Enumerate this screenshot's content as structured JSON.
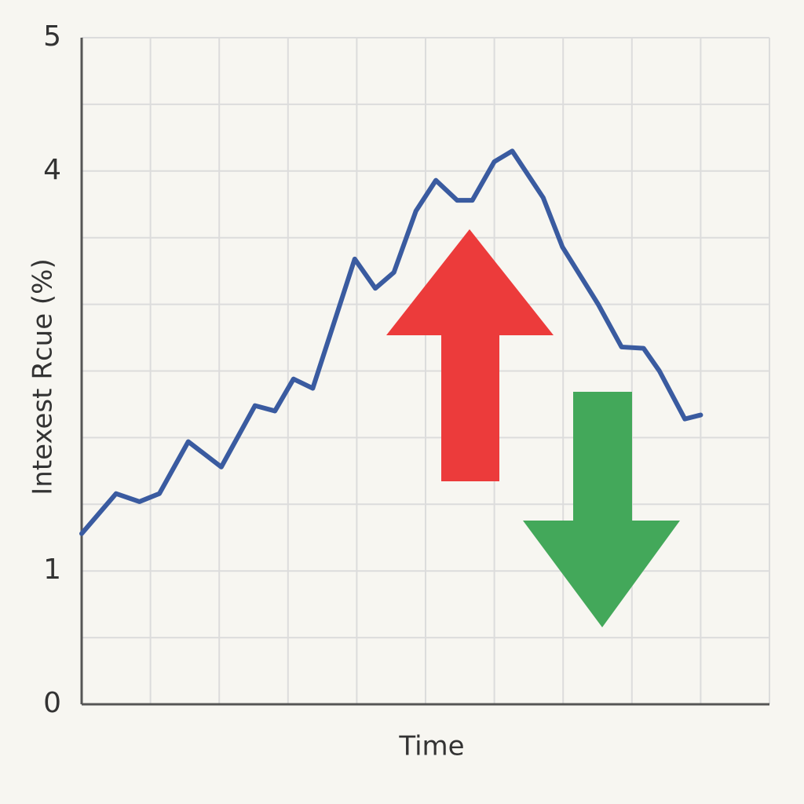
{
  "chart_data": {
    "type": "line",
    "xlabel": "Time",
    "ylabel": "Intexest Rcue (%)",
    "x": [
      0,
      0.5,
      0.84,
      1.13,
      1.55,
      2.03,
      2.52,
      2.81,
      3.08,
      3.36,
      3.97,
      4.27,
      4.54,
      4.86,
      5.15,
      5.46,
      5.68,
      6.0,
      6.26,
      6.71,
      6.99,
      7.51,
      7.85,
      8.17,
      8.4,
      8.77,
      9.0
    ],
    "series": [
      {
        "color": "#3a5ba0",
        "values": [
          1.28,
          1.58,
          1.52,
          1.58,
          1.97,
          1.78,
          2.24,
          2.2,
          2.44,
          2.37,
          3.34,
          3.12,
          3.24,
          3.7,
          3.93,
          3.78,
          3.78,
          4.07,
          4.15,
          3.8,
          3.43,
          3.0,
          2.68,
          2.67,
          2.5,
          2.14,
          2.17
        ]
      }
    ],
    "xlim": [
      0,
      10
    ],
    "ylim": [
      0,
      5
    ],
    "yticks": [
      0,
      1,
      4,
      5
    ],
    "xgrid": [
      0,
      1,
      2,
      3,
      4,
      5,
      6,
      7,
      8,
      9,
      10
    ],
    "ygrid": [
      0,
      0.5,
      1,
      1.5,
      2,
      2.5,
      3,
      3.5,
      4,
      4.5,
      5
    ],
    "grid": true
  }
}
